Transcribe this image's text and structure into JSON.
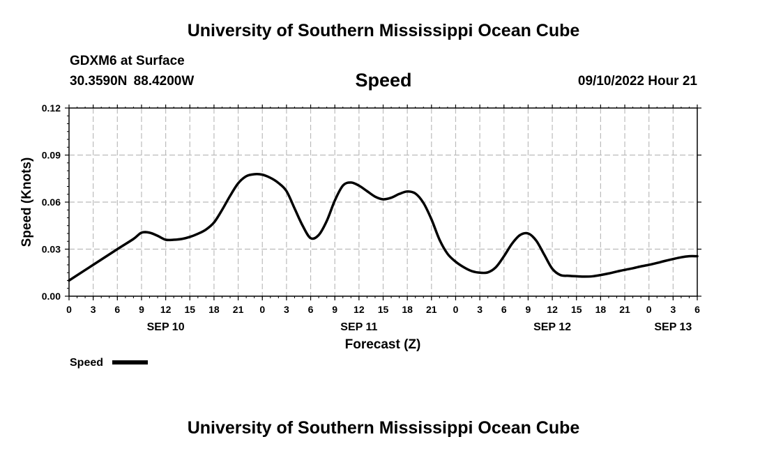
{
  "header": {
    "title": "University of Southern Mississippi Ocean Cube",
    "station": "GDXM6 at Surface",
    "coordinates": "30.3590N  88.4200W",
    "datetime": "09/10/2022 Hour 21"
  },
  "footer": {
    "title": "University of Southern Mississippi Ocean Cube"
  },
  "chart_data": {
    "type": "line",
    "title": "Speed",
    "xlabel": "Forecast (Z)",
    "ylabel": "Speed (Knots)",
    "ylim": [
      0,
      0.12
    ],
    "yticks": [
      0,
      0.03,
      0.06,
      0.09,
      0.12
    ],
    "ytick_labels": [
      "0.00",
      "0.03",
      "0.06",
      "0.09",
      "0.12"
    ],
    "xlim_hours": [
      0,
      78
    ],
    "xtick_hours": [
      0,
      3,
      6,
      9,
      12,
      15,
      18,
      21,
      24,
      27,
      30,
      33,
      36,
      39,
      42,
      45,
      48,
      51,
      54,
      57,
      60,
      63,
      66,
      69,
      72,
      75,
      78
    ],
    "xtick_labels": [
      "0",
      "3",
      "6",
      "9",
      "12",
      "15",
      "18",
      "21",
      "0",
      "3",
      "6",
      "9",
      "12",
      "15",
      "18",
      "21",
      "0",
      "3",
      "6",
      "9",
      "12",
      "15",
      "18",
      "21",
      "0",
      "3",
      "6"
    ],
    "date_labels": [
      {
        "hour": 12,
        "label": "SEP 10"
      },
      {
        "hour": 36,
        "label": "SEP 11"
      },
      {
        "hour": 60,
        "label": "SEP 12"
      },
      {
        "hour": 75,
        "label": "SEP 13"
      }
    ],
    "grid": true,
    "legend": {
      "position": "bottom-left",
      "label": "Speed"
    },
    "series": [
      {
        "name": "Speed",
        "x": [
          0,
          3,
          6,
          8,
          9,
          10,
          11,
          12,
          13,
          14,
          15,
          16,
          17,
          18,
          19,
          20,
          21,
          22,
          23,
          24,
          25,
          26,
          27,
          28,
          29,
          30,
          31,
          32,
          33,
          34,
          35,
          36,
          37,
          38,
          39,
          40,
          41,
          42,
          43,
          44,
          45,
          46,
          47,
          48,
          49,
          50,
          51,
          52,
          53,
          54,
          55,
          56,
          57,
          58,
          59,
          60,
          61,
          62,
          63,
          64,
          65,
          66,
          67,
          68,
          69,
          70,
          71,
          72,
          73,
          74,
          75,
          76,
          77,
          78
        ],
        "values": [
          0.01,
          0.02,
          0.03,
          0.0365,
          0.0405,
          0.0405,
          0.0385,
          0.036,
          0.036,
          0.0365,
          0.0378,
          0.0398,
          0.0425,
          0.047,
          0.055,
          0.064,
          0.072,
          0.0765,
          0.0778,
          0.0775,
          0.0755,
          0.0722,
          0.067,
          0.056,
          0.045,
          0.037,
          0.039,
          0.048,
          0.061,
          0.0705,
          0.0725,
          0.0705,
          0.067,
          0.0635,
          0.0618,
          0.0628,
          0.0652,
          0.0668,
          0.0655,
          0.0595,
          0.049,
          0.036,
          0.027,
          0.022,
          0.0185,
          0.016,
          0.015,
          0.0152,
          0.0185,
          0.0255,
          0.0335,
          0.039,
          0.04,
          0.0355,
          0.0265,
          0.0175,
          0.0135,
          0.013,
          0.0127,
          0.0125,
          0.0127,
          0.0135,
          0.0145,
          0.0157,
          0.0168,
          0.0178,
          0.019,
          0.02,
          0.0212,
          0.0225,
          0.0237,
          0.0248,
          0.0255,
          0.0255
        ]
      }
    ]
  }
}
